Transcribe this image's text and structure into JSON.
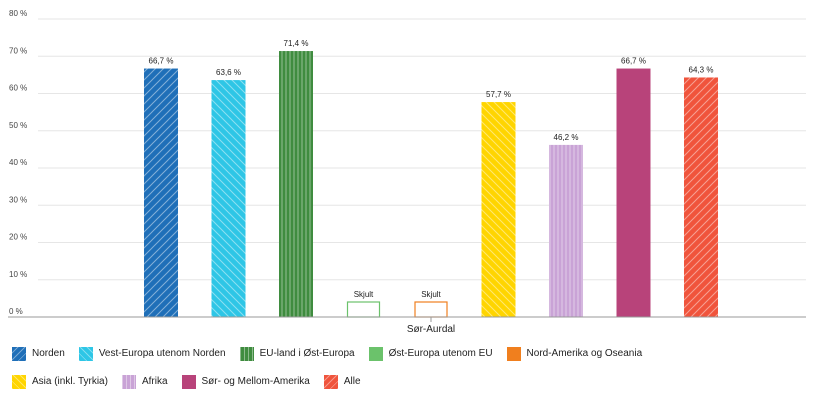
{
  "chart_data": {
    "type": "bar",
    "categories": [
      "Sør-Aurdal"
    ],
    "ylim": [
      0,
      80
    ],
    "yticks": [
      0,
      10,
      20,
      30,
      40,
      50,
      60,
      70,
      80
    ],
    "y_tick_labels": [
      "0 %",
      "10 %",
      "20 %",
      "30 %",
      "40 %",
      "50 %",
      "60 %",
      "70 %",
      "80 %"
    ],
    "grid": true,
    "legend_position": "bottom",
    "hidden_label": "Skjult",
    "series": [
      {
        "name": "Norden",
        "value": 66.7,
        "label": "66,7 %",
        "color": "#1f6fb8",
        "pattern": "diag-right",
        "hidden": false
      },
      {
        "name": "Vest-Europa utenom Norden",
        "value": 63.6,
        "label": "63,6 %",
        "color": "#2ec6e6",
        "pattern": "diag-left",
        "hidden": false
      },
      {
        "name": "EU-land i Øst-Europa",
        "value": 71.4,
        "label": "71,4 %",
        "color": "#3f8c3f",
        "pattern": "vertical",
        "hidden": false
      },
      {
        "name": "Øst-Europa utenom EU",
        "value": null,
        "label": "Skjult",
        "color": "#6bc26b",
        "pattern": "none",
        "hidden": true
      },
      {
        "name": "Nord-Amerika og Oseania",
        "value": null,
        "label": "Skjult",
        "color": "#f07f1e",
        "pattern": "none",
        "hidden": true
      },
      {
        "name": "Asia (inkl. Tyrkia)",
        "value": 57.7,
        "label": "57,7 %",
        "color": "#ffd500",
        "pattern": "diag-left",
        "hidden": false
      },
      {
        "name": "Afrika",
        "value": 46.2,
        "label": "46,2 %",
        "color": "#c9a3d6",
        "pattern": "vertical",
        "hidden": false
      },
      {
        "name": "Sør- og Mellom-Amerika",
        "value": 66.7,
        "label": "66,7 %",
        "color": "#b8437a",
        "pattern": "none",
        "hidden": false
      },
      {
        "name": "Alle",
        "value": 64.3,
        "label": "64,3 %",
        "color": "#f0543c",
        "pattern": "diag-right",
        "hidden": false
      }
    ]
  }
}
